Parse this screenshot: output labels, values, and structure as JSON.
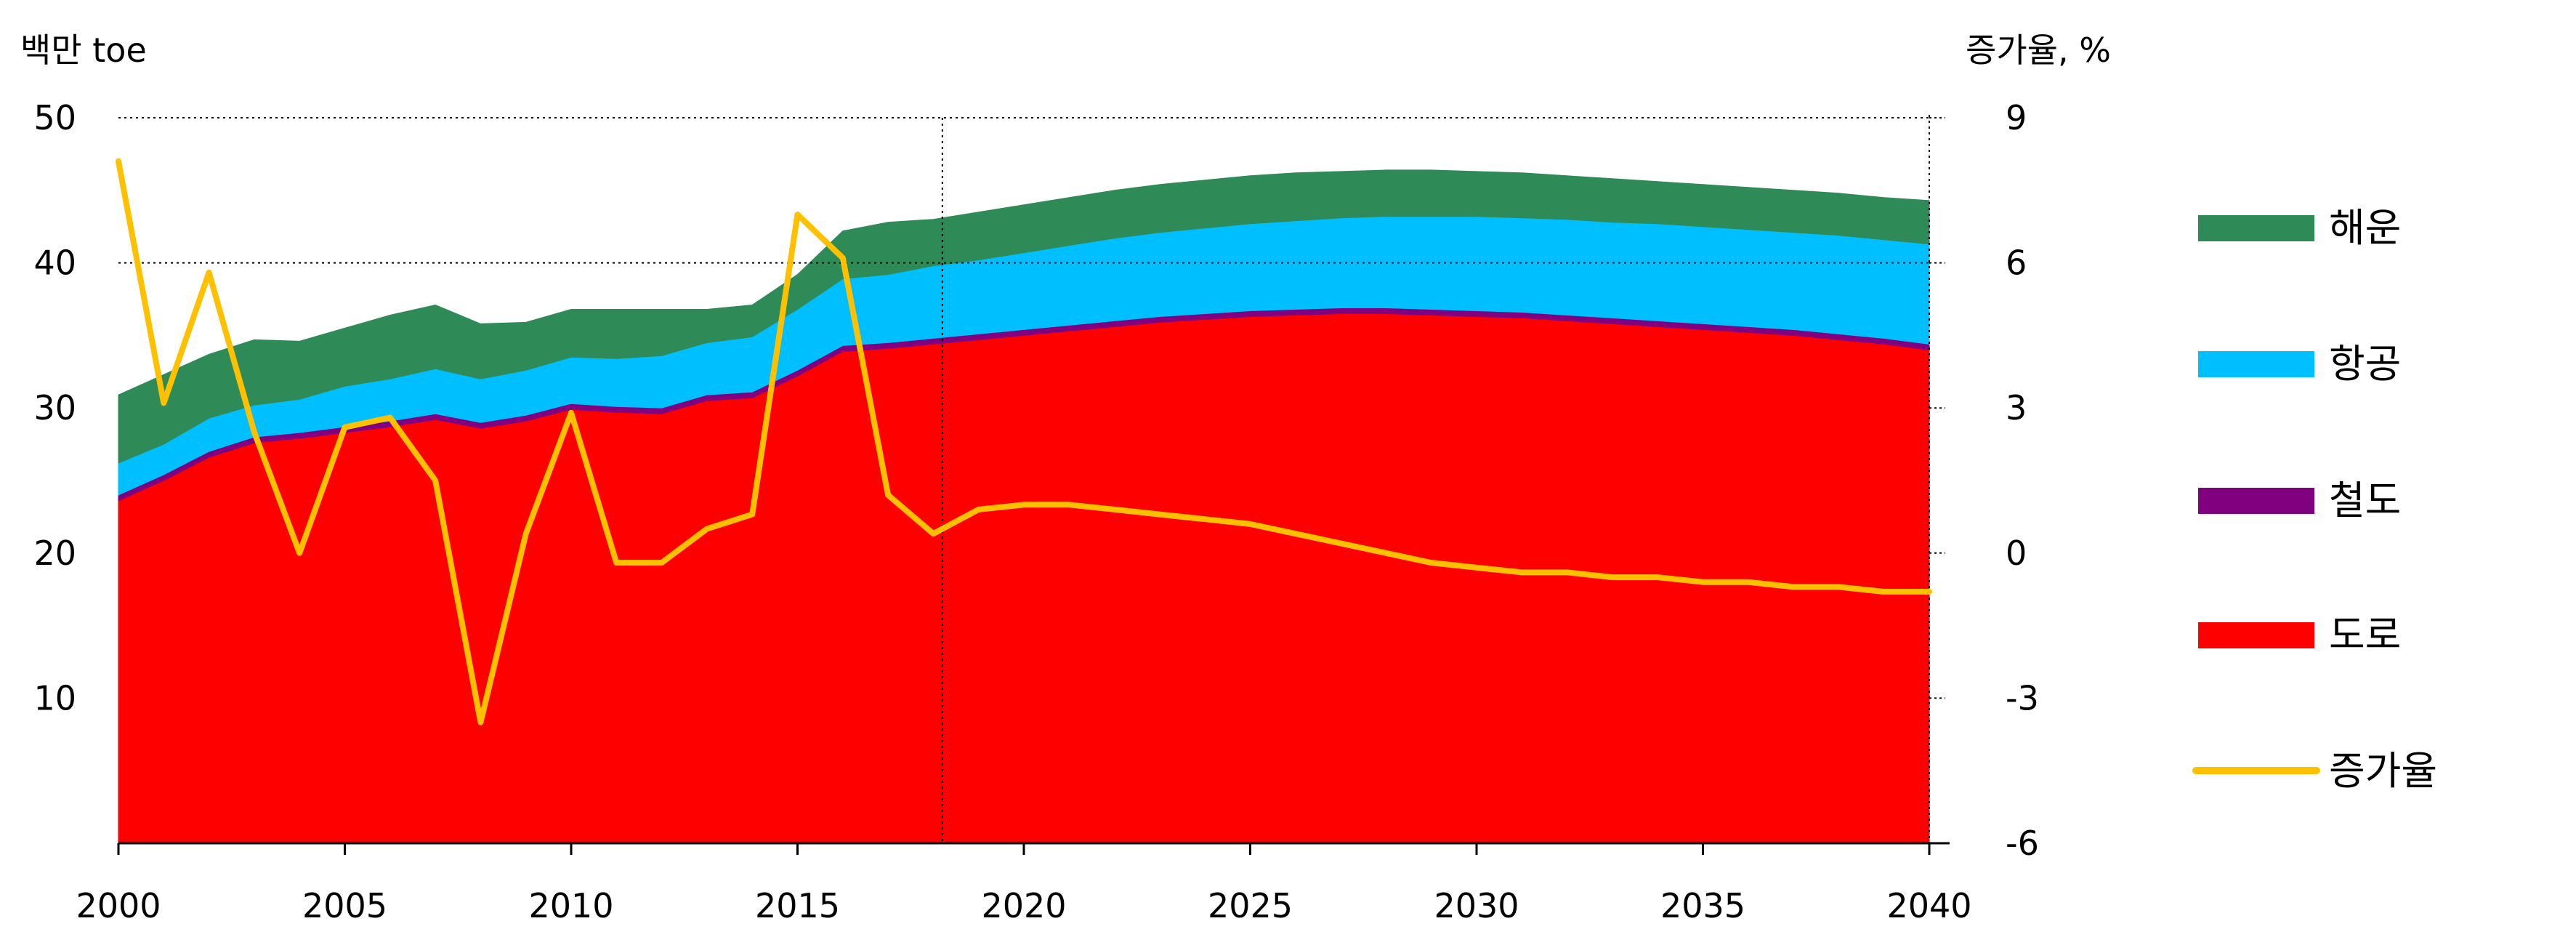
{
  "chart_data": {
    "type": "area",
    "left_unit_label": "백만 toe",
    "right_unit_label": "증가율, %",
    "x": [
      2000,
      2001,
      2002,
      2003,
      2004,
      2005,
      2006,
      2007,
      2008,
      2009,
      2010,
      2011,
      2012,
      2013,
      2014,
      2015,
      2016,
      2017,
      2018,
      2019,
      2020,
      2021,
      2022,
      2023,
      2024,
      2025,
      2026,
      2027,
      2028,
      2029,
      2030,
      2031,
      2032,
      2033,
      2034,
      2035,
      2036,
      2037,
      2038,
      2039,
      2040
    ],
    "x_ticks": [
      2000,
      2005,
      2010,
      2015,
      2020,
      2025,
      2030,
      2035,
      2040
    ],
    "xlim": [
      2000,
      2040
    ],
    "ylim_left": [
      0,
      50
    ],
    "y_ticks_left": [
      10,
      20,
      30,
      40,
      50
    ],
    "ylim_right": [
      -6,
      9
    ],
    "y_ticks_right": [
      -6,
      -3,
      0,
      3,
      6,
      9
    ],
    "gridlines_left": [
      40,
      50
    ],
    "vertical_marker_x": 2018.2,
    "legend_position": "right",
    "stacked_series": [
      {
        "name": "도로",
        "color": "#ff0000",
        "values": [
          23.6,
          25.0,
          26.6,
          27.6,
          27.9,
          28.3,
          28.7,
          29.2,
          28.6,
          29.1,
          29.9,
          29.7,
          29.6,
          30.5,
          30.7,
          32.2,
          33.9,
          34.1,
          34.4,
          34.7,
          35.0,
          35.3,
          35.6,
          35.9,
          36.1,
          36.3,
          36.4,
          36.5,
          36.5,
          36.4,
          36.3,
          36.2,
          36.0,
          35.8,
          35.6,
          35.4,
          35.2,
          35.0,
          34.7,
          34.4,
          34.0
        ]
      },
      {
        "name": "철도",
        "color": "#800080",
        "values": [
          0.4,
          0.4,
          0.4,
          0.4,
          0.4,
          0.4,
          0.4,
          0.4,
          0.4,
          0.4,
          0.4,
          0.4,
          0.4,
          0.4,
          0.4,
          0.4,
          0.4,
          0.4,
          0.4,
          0.4,
          0.4,
          0.4,
          0.4,
          0.4,
          0.4,
          0.4,
          0.4,
          0.4,
          0.4,
          0.4,
          0.4,
          0.4,
          0.4,
          0.4,
          0.4,
          0.4,
          0.4,
          0.4,
          0.4,
          0.4,
          0.4
        ]
      },
      {
        "name": "항공",
        "color": "#00bfff",
        "values": [
          2.2,
          2.1,
          2.3,
          2.2,
          2.3,
          2.8,
          2.9,
          3.1,
          3.0,
          3.1,
          3.2,
          3.3,
          3.6,
          3.6,
          3.8,
          4.2,
          4.6,
          4.7,
          5.0,
          5.1,
          5.3,
          5.5,
          5.7,
          5.8,
          5.9,
          6.0,
          6.1,
          6.2,
          6.3,
          6.4,
          6.5,
          6.5,
          6.6,
          6.6,
          6.7,
          6.7,
          6.7,
          6.7,
          6.8,
          6.8,
          6.9
        ]
      },
      {
        "name": "해운",
        "color": "#2e8b57",
        "values": [
          4.7,
          4.8,
          4.4,
          4.5,
          4.0,
          4.0,
          4.4,
          4.4,
          3.8,
          3.3,
          3.3,
          3.4,
          3.2,
          2.3,
          2.2,
          2.4,
          3.3,
          3.6,
          3.2,
          3.3,
          3.3,
          3.3,
          3.3,
          3.3,
          3.3,
          3.3,
          3.3,
          3.2,
          3.2,
          3.2,
          3.1,
          3.1,
          3.0,
          3.0,
          2.9,
          2.9,
          2.9,
          2.9,
          2.9,
          2.9,
          3.0
        ]
      }
    ],
    "line_series": {
      "name": "증가율",
      "color": "#ffc000",
      "axis": "right",
      "values": [
        8.1,
        3.1,
        5.8,
        2.5,
        0.0,
        2.6,
        2.8,
        1.5,
        -3.5,
        0.4,
        2.9,
        -0.2,
        -0.2,
        0.5,
        0.8,
        7.0,
        6.1,
        1.2,
        0.4,
        0.9,
        1.0,
        1.0,
        0.9,
        0.8,
        0.7,
        0.6,
        0.4,
        0.2,
        0.0,
        -0.2,
        -0.3,
        -0.4,
        -0.4,
        -0.5,
        -0.5,
        -0.6,
        -0.6,
        -0.7,
        -0.7,
        -0.8,
        -0.8
      ]
    },
    "legend": [
      {
        "label": "해운",
        "kind": "box",
        "color": "#2e8b57"
      },
      {
        "label": "항공",
        "kind": "box",
        "color": "#00bfff"
      },
      {
        "label": "철도",
        "kind": "box",
        "color": "#800080"
      },
      {
        "label": "도로",
        "kind": "box",
        "color": "#ff0000"
      },
      {
        "label": "증가율",
        "kind": "line",
        "color": "#ffc000"
      }
    ]
  }
}
